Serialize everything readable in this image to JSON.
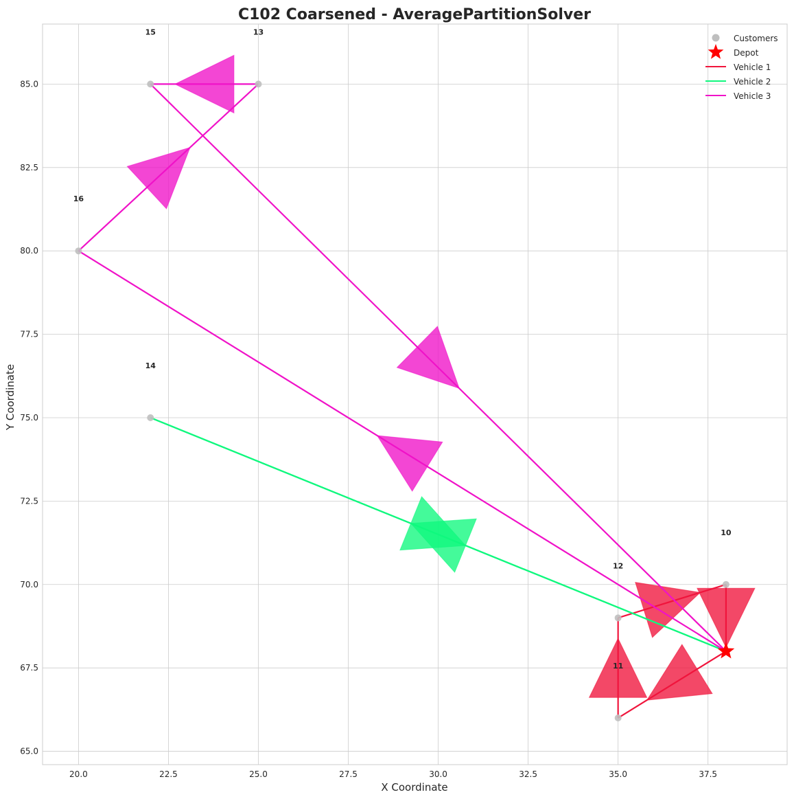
{
  "chart_data": {
    "type": "scatter",
    "title": "C102 Coarsened - AveragePartitionSolver",
    "xlabel": "X Coordinate",
    "ylabel": "Y Coordinate",
    "xlim": [
      19.0,
      39.7
    ],
    "ylim": [
      64.6,
      86.8
    ],
    "x_ticks": [
      20.0,
      22.5,
      25.0,
      27.5,
      30.0,
      32.5,
      35.0,
      37.5
    ],
    "y_ticks": [
      65.0,
      67.5,
      70.0,
      72.5,
      75.0,
      77.5,
      80.0,
      82.5,
      85.0
    ],
    "grid": true,
    "legend_position": "top-right",
    "customers": {
      "name": "Customers",
      "color": "#bfbfbf",
      "points": [
        {
          "id": "10",
          "x": 38,
          "y": 70
        },
        {
          "id": "11",
          "x": 35,
          "y": 66
        },
        {
          "id": "12",
          "x": 35,
          "y": 69
        },
        {
          "id": "13",
          "x": 25,
          "y": 85
        },
        {
          "id": "14",
          "x": 22,
          "y": 75
        },
        {
          "id": "15",
          "x": 22,
          "y": 85
        },
        {
          "id": "16",
          "x": 20,
          "y": 80
        }
      ]
    },
    "depot": {
      "name": "Depot",
      "x": 38,
      "y": 68,
      "color": "#ff0000"
    },
    "series": [
      {
        "name": "Vehicle 1",
        "color": "#f0153c",
        "route": [
          [
            38,
            68
          ],
          [
            35,
            66
          ],
          [
            35,
            69
          ],
          [
            38,
            70
          ],
          [
            38,
            68
          ]
        ]
      },
      {
        "name": "Vehicle 2",
        "color": "#10f87e",
        "route": [
          [
            38,
            68
          ],
          [
            22,
            75
          ],
          [
            38,
            68
          ]
        ]
      },
      {
        "name": "Vehicle 3",
        "color": "#f012c8",
        "route": [
          [
            38,
            68
          ],
          [
            20,
            80
          ],
          [
            25,
            85
          ],
          [
            22,
            85
          ],
          [
            38,
            68
          ]
        ]
      }
    ]
  }
}
